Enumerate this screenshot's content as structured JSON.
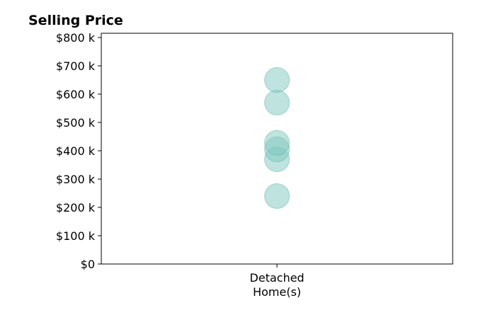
{
  "chart_data": {
    "type": "scatter",
    "title": "Selling Price",
    "xlabel": "",
    "ylabel": "",
    "categories": [
      {
        "line1": "Detached",
        "line2": "Home(s)"
      }
    ],
    "y_tick_values": [
      0,
      100000,
      200000,
      300000,
      400000,
      500000,
      600000,
      700000,
      800000
    ],
    "y_tick_labels": [
      "$0",
      "$100 k",
      "$200 k",
      "$300 k",
      "$400 k",
      "$500 k",
      "$600 k",
      "$700 k",
      "$800 k"
    ],
    "ylim": [
      0,
      815000
    ],
    "grid": false,
    "series": [
      {
        "category": "Detached Home(s)",
        "values": [
          240000,
          370000,
          405000,
          428000,
          570000,
          650000
        ]
      }
    ],
    "colors": {
      "marker_fill": "#7fc7bd",
      "marker_stroke": "#5fb3a8",
      "axis": "#000000"
    }
  }
}
